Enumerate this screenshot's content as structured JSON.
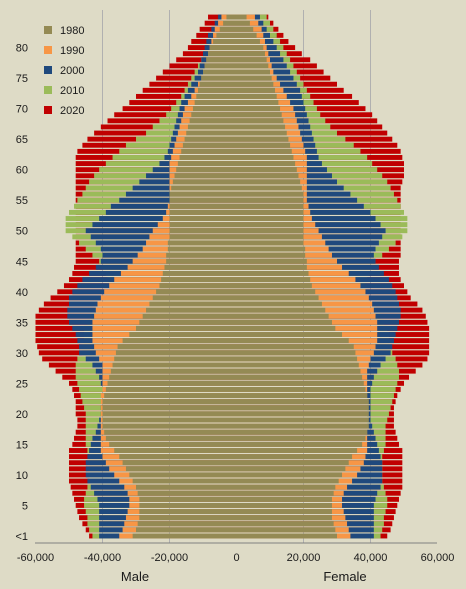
{
  "chart_data": {
    "type": "bar",
    "orientation": "horizontal",
    "style": "population-pyramid, overlapping series",
    "y_tick_labels": [
      "<1",
      "5",
      "10",
      "15",
      "20",
      "25",
      "30",
      "35",
      "40",
      "45",
      "50",
      "55",
      "60",
      "65",
      "70",
      "75",
      "80"
    ],
    "x_tick_labels": [
      "-60,000",
      "-40,000",
      "-20,000",
      "0",
      "20,000",
      "40,000",
      "60,000"
    ],
    "xlim": [
      -60000,
      60000
    ],
    "xlabel_left": "Male",
    "xlabel_right": "Female",
    "ages": [
      0,
      1,
      2,
      3,
      4,
      5,
      6,
      7,
      8,
      9,
      10,
      11,
      12,
      13,
      14,
      15,
      16,
      17,
      18,
      19,
      20,
      21,
      22,
      23,
      24,
      25,
      26,
      27,
      28,
      29,
      30,
      31,
      32,
      33,
      34,
      35,
      36,
      37,
      38,
      39,
      40,
      41,
      42,
      43,
      44,
      45,
      46,
      47,
      48,
      49,
      50,
      51,
      52,
      53,
      54,
      55,
      56,
      57,
      58,
      59,
      60,
      61,
      62,
      63,
      64,
      65,
      66,
      67,
      68,
      69,
      70,
      71,
      72,
      73,
      74,
      75,
      76,
      77,
      78,
      79,
      80,
      81,
      82,
      83,
      84,
      85
    ],
    "legend_position": "top-left",
    "series": [
      {
        "name": "2020",
        "color": "#c00000",
        "male": [
          44000,
          45000,
          46000,
          47000,
          47500,
          48000,
          48500,
          49000,
          49500,
          50000,
          50000,
          50000,
          50000,
          50000,
          50000,
          49000,
          48500,
          48000,
          47500,
          47500,
          48000,
          48000,
          48000,
          48500,
          49000,
          50000,
          52000,
          54000,
          56000,
          58000,
          59000,
          59500,
          60000,
          60000,
          60000,
          60000,
          60000,
          59000,
          57500,
          55500,
          53500,
          51500,
          50000,
          49000,
          48500,
          48000,
          48000,
          48000,
          48000,
          48000,
          48000,
          48000,
          48000,
          48000,
          48000,
          48000,
          48000,
          48000,
          48000,
          48000,
          48000,
          48000,
          48000,
          47500,
          46000,
          44500,
          42500,
          40500,
          38500,
          36500,
          34000,
          32000,
          30000,
          28000,
          26000,
          24000,
          22000,
          20000,
          18000,
          16000,
          14500,
          13500,
          12000,
          11000,
          9500,
          8500
        ],
        "female": [
          45000,
          46000,
          46500,
          47000,
          47500,
          48000,
          48500,
          49000,
          49500,
          49500,
          49500,
          49500,
          49500,
          49500,
          49500,
          48500,
          48000,
          47500,
          47000,
          47000,
          47000,
          47000,
          47500,
          48000,
          49000,
          50000,
          51500,
          53500,
          55500,
          57000,
          57500,
          57500,
          57500,
          57500,
          57500,
          57000,
          56500,
          55500,
          54000,
          52000,
          51000,
          50000,
          49000,
          48500,
          48500,
          48500,
          49000,
          49000,
          49000,
          49000,
          49000,
          49000,
          49000,
          49000,
          49000,
          49000,
          49000,
          49000,
          49500,
          50000,
          50000,
          50000,
          49500,
          49000,
          48000,
          46500,
          45000,
          43500,
          42000,
          40500,
          38500,
          36500,
          34500,
          32000,
          30000,
          28000,
          26000,
          24000,
          22000,
          19500,
          17500,
          15500,
          14000,
          12500,
          11000,
          9500
        ]
      },
      {
        "name": "2010",
        "color": "#9bbb59",
        "male": [
          43000,
          44000,
          44500,
          44500,
          45000,
          45500,
          45500,
          45000,
          44500,
          44000,
          44000,
          44000,
          44000,
          44000,
          44500,
          45000,
          45000,
          45000,
          45000,
          45000,
          45000,
          45500,
          46000,
          46500,
          47000,
          47500,
          48000,
          48000,
          48000,
          47500,
          46000,
          46000,
          45500,
          45500,
          45500,
          44500,
          43500,
          42000,
          40500,
          39000,
          38000,
          38000,
          38500,
          39000,
          40000,
          41000,
          43000,
          45000,
          47000,
          49000,
          51000,
          51000,
          51000,
          50000,
          48500,
          47500,
          46000,
          45000,
          44000,
          42500,
          41000,
          39000,
          37000,
          35000,
          33000,
          30000,
          27000,
          25000,
          23000,
          21000,
          19500,
          18000,
          16500,
          15500,
          14500,
          13500,
          12500,
          11500,
          10500,
          9500,
          8500,
          7500,
          6500,
          5500,
          4500,
          3500
        ],
        "female": [
          43000,
          43500,
          44000,
          44000,
          44500,
          45000,
          45000,
          44500,
          44000,
          43500,
          43500,
          43500,
          43500,
          43500,
          44000,
          44500,
          44500,
          44500,
          44500,
          45000,
          45500,
          46000,
          46500,
          47000,
          47500,
          48000,
          48500,
          48500,
          48000,
          47500,
          46500,
          46000,
          45500,
          45500,
          45000,
          44000,
          43000,
          41500,
          40000,
          39000,
          38500,
          38500,
          39000,
          39500,
          40500,
          41500,
          43500,
          45500,
          47500,
          49500,
          51000,
          51000,
          51000,
          50000,
          49000,
          48000,
          47000,
          46000,
          45000,
          43500,
          42000,
          40500,
          39000,
          37000,
          35000,
          32500,
          30000,
          28000,
          26500,
          25000,
          24000,
          23000,
          22000,
          21000,
          20000,
          19000,
          18000,
          17000,
          16000,
          15000,
          14000,
          13000,
          12000,
          11000,
          10000,
          9000
        ]
      },
      {
        "name": "2000",
        "color": "#1f497d",
        "male": [
          41000,
          41000,
          41000,
          41000,
          41000,
          41000,
          41500,
          42500,
          43500,
          44500,
          45000,
          45000,
          45000,
          44500,
          44000,
          43500,
          43000,
          42000,
          41500,
          41000,
          40500,
          40500,
          40000,
          40000,
          40000,
          40500,
          41000,
          42000,
          43000,
          45000,
          47000,
          47000,
          47500,
          48000,
          49000,
          50000,
          50500,
          50500,
          50000,
          50000,
          49000,
          47500,
          46000,
          44000,
          42000,
          40500,
          40000,
          40500,
          42000,
          43500,
          45000,
          43000,
          41000,
          39000,
          37500,
          35000,
          33000,
          31000,
          29000,
          27000,
          25000,
          23000,
          21500,
          20500,
          20000,
          19500,
          19000,
          18500,
          18000,
          17500,
          17000,
          16500,
          15500,
          14500,
          13500,
          12500,
          11500,
          11000,
          10500,
          10000,
          9500,
          9000,
          8500,
          7500,
          6500,
          5500
        ],
        "female": [
          41000,
          41000,
          41000,
          41000,
          41000,
          41000,
          41500,
          42000,
          43000,
          43500,
          43500,
          43500,
          43500,
          43000,
          42500,
          42000,
          41500,
          41000,
          40500,
          40000,
          40000,
          40000,
          40000,
          40000,
          40000,
          40500,
          41000,
          42000,
          43000,
          44500,
          46000,
          46500,
          47000,
          47500,
          48000,
          48500,
          49000,
          49000,
          48500,
          48000,
          47500,
          46500,
          45500,
          44000,
          42500,
          41500,
          41000,
          41500,
          42500,
          43500,
          44500,
          43000,
          41500,
          40000,
          38000,
          36000,
          34000,
          32000,
          30000,
          28500,
          27000,
          25500,
          24500,
          24000,
          23500,
          23000,
          22500,
          22000,
          21500,
          21000,
          20500,
          20000,
          19500,
          19000,
          18000,
          17000,
          16000,
          15000,
          14000,
          13000,
          12000,
          11000,
          10000,
          9000,
          8000,
          7000
        ]
      },
      {
        "name": "1990",
        "color": "#f79646",
        "male": [
          35000,
          34000,
          33500,
          33000,
          32500,
          32000,
          32000,
          32500,
          33500,
          35000,
          36500,
          38000,
          39000,
          40000,
          40500,
          40500,
          40500,
          40500,
          40500,
          40500,
          40500,
          40500,
          40500,
          40500,
          40000,
          40000,
          40000,
          40000,
          40000,
          41000,
          42000,
          42500,
          43000,
          43000,
          43000,
          43000,
          42500,
          42000,
          41500,
          40500,
          39500,
          38000,
          36500,
          34500,
          32500,
          31000,
          29500,
          28000,
          27000,
          26000,
          25000,
          23500,
          22000,
          21000,
          20500,
          20000,
          20000,
          20000,
          20000,
          20000,
          20000,
          20000,
          19500,
          19000,
          18500,
          18000,
          17500,
          17000,
          16500,
          16000,
          15500,
          14500,
          13500,
          12500,
          11500,
          10500,
          10000,
          9500,
          9000,
          8500,
          8000,
          7500,
          7000,
          6500,
          5500,
          4500
        ],
        "female": [
          34000,
          33500,
          33000,
          32500,
          32000,
          31500,
          31500,
          32000,
          33000,
          34500,
          36000,
          37000,
          38000,
          38500,
          39000,
          39000,
          39000,
          39000,
          39000,
          39000,
          39000,
          39000,
          39000,
          39000,
          39000,
          39000,
          39000,
          39000,
          39500,
          40000,
          41000,
          41500,
          42000,
          42000,
          42000,
          42000,
          41500,
          41000,
          40500,
          39500,
          38500,
          37000,
          35500,
          33500,
          31500,
          30000,
          28500,
          27500,
          26500,
          25500,
          24500,
          23500,
          22500,
          22000,
          21500,
          21000,
          21000,
          21000,
          21000,
          21000,
          21000,
          21000,
          21000,
          20500,
          20000,
          19500,
          19000,
          18500,
          18000,
          17500,
          17000,
          16000,
          15000,
          14000,
          13000,
          12000,
          11000,
          10500,
          10000,
          9500,
          9000,
          8500,
          8000,
          7500,
          6500,
          5500
        ]
      },
      {
        "name": "1980",
        "color": "#948a54",
        "male": [
          31000,
          30000,
          29500,
          29000,
          29000,
          29000,
          29000,
          29500,
          30000,
          31000,
          32000,
          33000,
          34000,
          35000,
          36500,
          38000,
          39000,
          39500,
          40000,
          40000,
          40000,
          40000,
          40000,
          39500,
          39000,
          38500,
          38000,
          37500,
          37000,
          36500,
          36000,
          35500,
          34000,
          32000,
          30000,
          29000,
          28000,
          27000,
          26000,
          25000,
          24000,
          23000,
          22500,
          22000,
          21500,
          21000,
          21000,
          20500,
          20500,
          20000,
          20000,
          20000,
          20000,
          20000,
          20000,
          20000,
          20000,
          19500,
          19000,
          18500,
          18000,
          17500,
          17000,
          16500,
          16000,
          15500,
          15000,
          14500,
          14000,
          13500,
          13000,
          12500,
          12000,
          11500,
          11000,
          10500,
          10000,
          9500,
          9000,
          8500,
          8000,
          7000,
          6000,
          5000,
          4000,
          3000
        ],
        "female": [
          30000,
          29500,
          29000,
          28500,
          28500,
          28500,
          28500,
          29000,
          29500,
          30500,
          31500,
          32500,
          33500,
          34500,
          36000,
          37500,
          38500,
          39000,
          39500,
          39500,
          39500,
          39500,
          39500,
          39000,
          38500,
          38000,
          37500,
          37000,
          36500,
          36000,
          35500,
          35000,
          33500,
          31500,
          29500,
          28500,
          27500,
          26500,
          25500,
          24500,
          23500,
          22500,
          22000,
          21500,
          21000,
          21000,
          20500,
          20500,
          20000,
          20000,
          20000,
          20000,
          20000,
          20000,
          20000,
          20000,
          20000,
          19500,
          19000,
          18500,
          18000,
          17500,
          17000,
          16500,
          16000,
          15500,
          15000,
          14500,
          14000,
          13500,
          13000,
          12500,
          12000,
          11500,
          11000,
          10500,
          10000,
          9500,
          9000,
          8500,
          8000,
          7000,
          6000,
          5000,
          4000,
          3000
        ]
      }
    ]
  }
}
